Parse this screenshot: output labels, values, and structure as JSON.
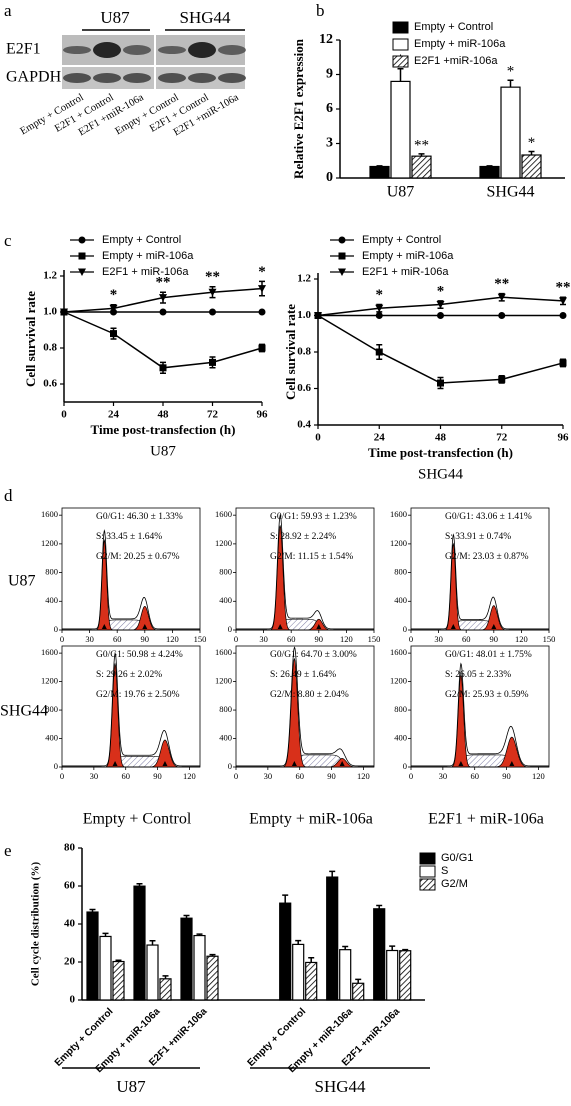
{
  "panel_labels": [
    "a",
    "b",
    "c",
    "d",
    "e"
  ],
  "blot": {
    "cell_lines": [
      "U87",
      "SHG44"
    ],
    "proteins": [
      "E2F1",
      "GAPDH"
    ],
    "lanes": [
      "Empty + Control",
      "E2F1 + Control",
      "E2F1 +miR-106a",
      "Empty + Control",
      "E2F1 + Control",
      "E2F1 +miR-106a"
    ]
  },
  "chart_data": [
    {
      "type": "bar",
      "ylabel": "Relative E2F1 expression",
      "categories": [
        "U87",
        "SHG44"
      ],
      "ylim": [
        0,
        12
      ],
      "yticks": [
        0,
        3,
        6,
        9,
        12
      ],
      "series": [
        {
          "name": "Empty + Control",
          "color": "#000000",
          "values": [
            1,
            1
          ],
          "errors": [
            0.05,
            0.05
          ]
        },
        {
          "name": "Empty + miR-106a",
          "color": "#ffffff",
          "values": [
            8.4,
            7.9
          ],
          "errors": [
            1.1,
            0.6
          ],
          "significance": [
            "*",
            "*"
          ]
        },
        {
          "name": "E2F1 +miR-106a",
          "color": "#ffffff",
          "pattern": "diagonal",
          "values": [
            1.9,
            2.0
          ],
          "errors": [
            0.2,
            0.3
          ],
          "significance": [
            "**",
            "*"
          ]
        }
      ]
    },
    {
      "type": "line",
      "xlabel": "Time post-transfection (h)",
      "ylabel": "Cell survival rate",
      "subtitle": "U87",
      "x": [
        0,
        24,
        48,
        72,
        96
      ],
      "xlim": [
        0,
        96
      ],
      "xticks": [
        0,
        24,
        48,
        72,
        96
      ],
      "ylim": [
        0.5,
        1.2
      ],
      "yticks": [
        0.6,
        0.8,
        {
          "value": 1,
          "label": "1.0"
        },
        1.2
      ],
      "series": [
        {
          "name": "Empty + Control",
          "color": "#000000",
          "marker": "circle",
          "values": [
            1,
            1,
            1,
            1,
            1
          ]
        },
        {
          "name": "Empty + miR-106a",
          "color": "#000000",
          "marker": "square",
          "values": [
            1,
            0.88,
            0.69,
            0.72,
            0.8
          ],
          "errors": [
            0,
            0.03,
            0.03,
            0.03,
            0.02
          ]
        },
        {
          "name": "E2F1 + miR-106a",
          "color": "#000000",
          "marker": "triangle-down",
          "values": [
            1,
            1.02,
            1.08,
            1.11,
            1.13
          ],
          "errors": [
            0,
            0.02,
            0.03,
            0.03,
            0.04
          ],
          "significance": [
            null,
            "*",
            "**",
            "**",
            "*"
          ]
        }
      ]
    },
    {
      "type": "line",
      "xlabel": "Time post-transfection (h)",
      "ylabel": "Cell survival rate",
      "subtitle": "SHG44",
      "x": [
        0,
        24,
        48,
        72,
        96
      ],
      "xlim": [
        0,
        96
      ],
      "xticks": [
        0,
        24,
        48,
        72,
        96
      ],
      "ylim": [
        0.4,
        1.2
      ],
      "yticks": [
        0.4,
        0.6,
        0.8,
        {
          "value": 1,
          "label": "1.0"
        },
        1.2
      ],
      "series": [
        {
          "name": "Empty + Control",
          "color": "#000000",
          "marker": "circle",
          "values": [
            1,
            1,
            1,
            1,
            1
          ]
        },
        {
          "name": "Empty + miR-106a",
          "color": "#000000",
          "marker": "square",
          "values": [
            1,
            0.8,
            0.63,
            0.65,
            0.74
          ],
          "errors": [
            0,
            0.04,
            0.03,
            0.02,
            0.02
          ]
        },
        {
          "name": "E2F1 + miR-106a",
          "color": "#000000",
          "marker": "triangle-down",
          "values": [
            1,
            1.04,
            1.06,
            1.1,
            1.08
          ],
          "errors": [
            0,
            0.02,
            0.02,
            0.02,
            0.02
          ],
          "significance": [
            null,
            "*",
            "*",
            "**",
            "**"
          ]
        }
      ]
    },
    {
      "type": "bar",
      "ylabel": "Cell cycle distribution (%)",
      "categories": [
        "Empty + Control",
        "Empty + miR-106a",
        "E2F1 +miR-106a",
        "Empty + Control",
        "Empty + miR-106a",
        "E2F1 +miR-106a"
      ],
      "group_labels": [
        "U87",
        "SHG44"
      ],
      "ylim": [
        0,
        80
      ],
      "yticks": [
        0,
        20,
        40,
        60,
        80
      ],
      "series": [
        {
          "name": "G0/G1",
          "color": "#000000",
          "values": [
            46.3,
            59.93,
            43.06,
            50.98,
            64.7,
            48.01
          ],
          "errors": [
            1.33,
            1.23,
            1.41,
            4.24,
            3.0,
            1.75
          ]
        },
        {
          "name": "S",
          "color": "#ffffff",
          "values": [
            33.45,
            28.92,
            33.91,
            29.26,
            26.49,
            26.05
          ],
          "errors": [
            1.64,
            2.24,
            0.74,
            2.02,
            1.64,
            2.33
          ]
        },
        {
          "name": "G2/M",
          "color": "#ffffff",
          "pattern": "diagonal",
          "values": [
            20.25,
            11.15,
            23.03,
            19.76,
            8.8,
            25.93
          ],
          "errors": [
            0.67,
            1.54,
            0.87,
            2.5,
            2.04,
            0.59
          ]
        }
      ]
    }
  ],
  "flow": {
    "row_labels": [
      "U87",
      "SHG44"
    ],
    "column_labels": [
      "Empty + Control",
      "Empty + miR-106a",
      "E2F1 + miR-106a"
    ],
    "rows": [
      {
        "xlim": [
          0,
          150
        ],
        "xticks": [
          0,
          30,
          60,
          90,
          120,
          150
        ],
        "ylim": [
          0,
          1700
        ],
        "yticks": [
          0,
          400,
          800,
          1200,
          1600
        ]
      },
      {
        "xlim": [
          0,
          130
        ],
        "xticks": [
          0,
          30,
          60,
          90,
          120
        ],
        "ylim": [
          0,
          1700
        ],
        "yticks": [
          0,
          400,
          800,
          1200,
          1600
        ]
      }
    ],
    "stats": [
      [
        [
          "G0/G1: 46.30 ± 1.33%",
          "S: 33.45 ± 1.64%",
          "G2/M: 20.25 ± 0.67%"
        ],
        [
          "G0/G1: 59.93 ± 1.23%",
          "S: 28.92 ± 2.24%",
          "G2/M: 11.15 ± 1.54%"
        ],
        [
          "G0/G1: 43.06 ± 1.41%",
          "S: 33.91 ± 0.74%",
          "G2/M: 23.03 ± 0.87%"
        ]
      ],
      [
        [
          "G0/G1: 50.98 ± 4.24%",
          "S: 29.26 ± 2.02%",
          "G2/M: 19.76 ± 2.50%"
        ],
        [
          "G0/G1: 64.70 ± 3.00%",
          "S: 26.49 ± 1.64%",
          "G2/M: 8.80 ± 2.04%"
        ],
        [
          "G0/G1: 48.01 ± 1.75%",
          "S: 26.05 ± 2.33%",
          "G2/M: 25.93 ± 0.59%"
        ]
      ]
    ]
  }
}
